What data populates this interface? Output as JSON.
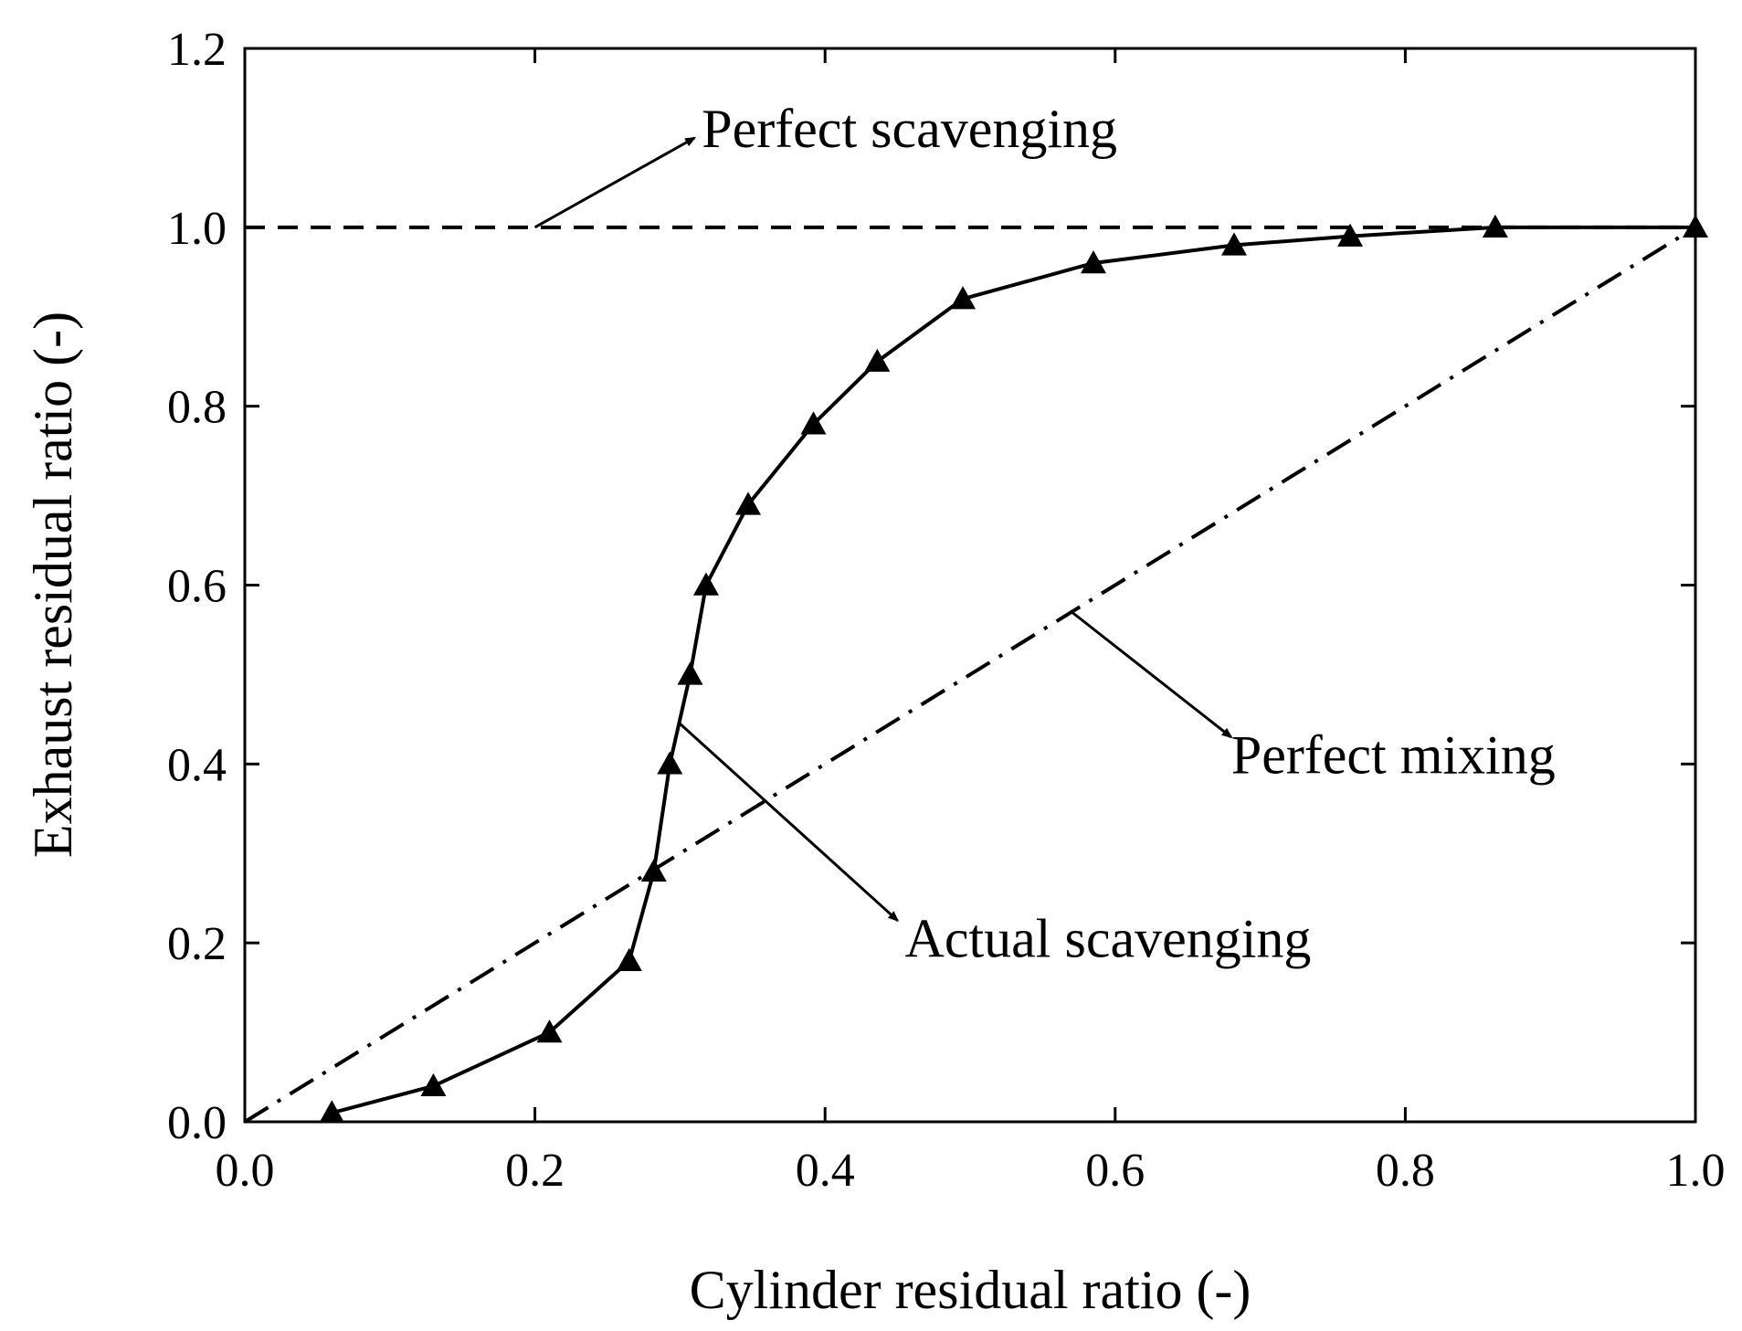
{
  "chart_data": {
    "type": "line",
    "title": "",
    "xlabel": "Cylinder residual ratio (-)",
    "ylabel": "Exhaust residual ratio (-)",
    "xlim": [
      0,
      1.0
    ],
    "ylim": [
      0,
      1.2
    ],
    "xticks": [
      "0.0",
      "0.2",
      "0.4",
      "0.6",
      "0.8",
      "1.0"
    ],
    "yticks": [
      "0.0",
      "0.2",
      "0.4",
      "0.6",
      "0.8",
      "1.0",
      "1.2"
    ],
    "grid": false,
    "series": [
      {
        "name": "Perfect scavenging",
        "style": "dashed",
        "x": [
          0,
          1.0
        ],
        "y": [
          1.0,
          1.0
        ]
      },
      {
        "name": "Perfect mixing",
        "style": "dash-dot",
        "x": [
          0,
          1.0
        ],
        "y": [
          0,
          1.0
        ]
      },
      {
        "name": "Actual scavenging",
        "style": "solid",
        "marker": "triangle",
        "x": [
          0.06,
          0.13,
          0.21,
          0.265,
          0.282,
          0.293,
          0.307,
          0.318,
          0.347,
          0.392,
          0.436,
          0.495,
          0.585,
          0.682,
          0.762,
          0.862,
          1.0
        ],
        "y": [
          0.01,
          0.04,
          0.1,
          0.18,
          0.28,
          0.4,
          0.5,
          0.6,
          0.69,
          0.78,
          0.85,
          0.92,
          0.96,
          0.98,
          0.99,
          1.0,
          1.0
        ]
      }
    ],
    "annotations": [
      {
        "text": "Perfect scavenging",
        "arrow_from": [
          0.2,
          1.0
        ],
        "arrow_to": [
          0.31,
          1.1
        ],
        "label_at": [
          0.315,
          1.11
        ]
      },
      {
        "text": "Perfect mixing",
        "arrow_from": [
          0.57,
          0.57
        ],
        "arrow_to": [
          0.68,
          0.43
        ],
        "label_at": [
          0.68,
          0.41
        ]
      },
      {
        "text": "Actual scavenging",
        "arrow_from": [
          0.3,
          0.445
        ],
        "arrow_to": [
          0.45,
          0.225
        ],
        "label_at": [
          0.455,
          0.205
        ]
      }
    ]
  }
}
